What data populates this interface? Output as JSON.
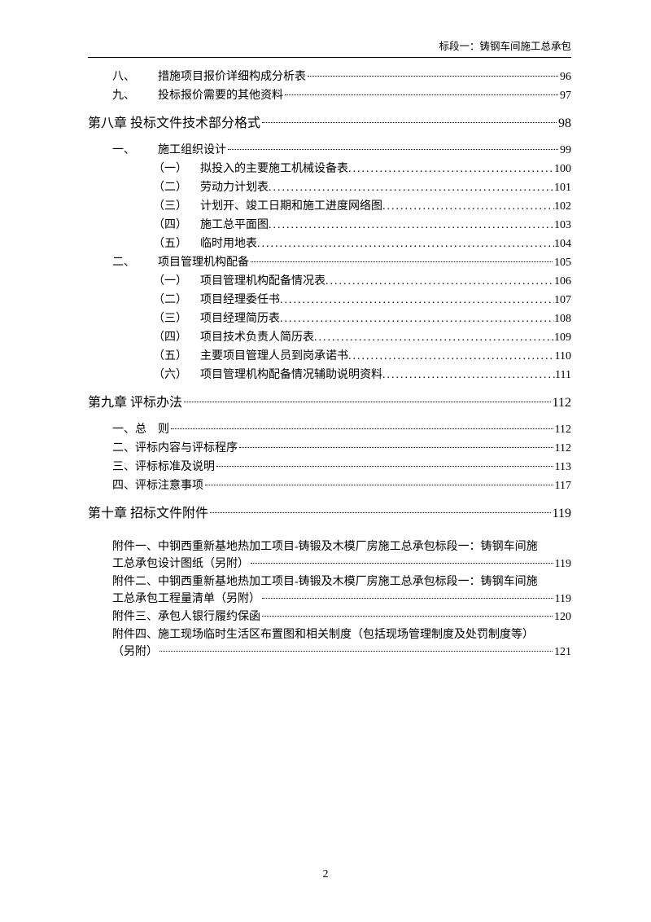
{
  "header": "标段一：铸钢车间施工总承包",
  "page_number": "2",
  "entries": [
    {
      "cls": "lvl-1",
      "num": "八、",
      "label": "措施项目报价详细构成分析表",
      "page": "96",
      "dots": "tight"
    },
    {
      "cls": "lvl-1",
      "num": "九、",
      "label": "投标报价需要的其他资料",
      "page": "97",
      "dots": "tight"
    },
    {
      "cls": "lvl-0",
      "num": "第八章",
      "label": "投标文件技术部分格式",
      "page": "98",
      "dots": "tight"
    },
    {
      "cls": "lvl-1",
      "num": "一、",
      "label": "施工组织设计",
      "page": "99",
      "dots": "tight"
    },
    {
      "cls": "lvl-2",
      "num": "（一）",
      "label": "拟投入的主要施工机械设备表",
      "page": "100",
      "dots": "wide"
    },
    {
      "cls": "lvl-2",
      "num": "（二）",
      "label": "劳动力计划表",
      "page": "101",
      "dots": "wide"
    },
    {
      "cls": "lvl-2",
      "num": "（三）",
      "label": "计划开、竣工日期和施工进度网络图",
      "page": "102",
      "dots": "wide"
    },
    {
      "cls": "lvl-2",
      "num": "（四）",
      "label": "施工总平面图",
      "page": "103",
      "dots": "wide"
    },
    {
      "cls": "lvl-2",
      "num": "（五）",
      "label": "临时用地表",
      "page": "104",
      "dots": "wide"
    },
    {
      "cls": "lvl-1",
      "num": "二、",
      "label": "项目管理机构配备",
      "page": "105",
      "dots": "tight"
    },
    {
      "cls": "lvl-2",
      "num": "（一）",
      "label": "项目管理机构配备情况表",
      "page": "106",
      "dots": "wide"
    },
    {
      "cls": "lvl-2",
      "num": "（二）",
      "label": "项目经理委任书",
      "page": "107",
      "dots": "wide"
    },
    {
      "cls": "lvl-2",
      "num": "（三）",
      "label": "项目经理简历表",
      "page": "108",
      "dots": "wide"
    },
    {
      "cls": "lvl-2",
      "num": "（四）",
      "label": "项目技术负责人简历表",
      "page": "109",
      "dots": "wide"
    },
    {
      "cls": "lvl-2",
      "num": "（五）",
      "label": "主要项目管理人员到岗承诺书",
      "page": "110",
      "dots": "wide"
    },
    {
      "cls": "lvl-2",
      "num": "（六）",
      "label": "项目管理机构配备情况辅助说明资料",
      "page": "111",
      "dots": "wide"
    },
    {
      "cls": "lvl-0",
      "num": "第九章",
      "label": "  评标办法",
      "page": "112",
      "dots": "tight"
    },
    {
      "cls": "lvl-1b",
      "num": "",
      "label": "一、总　则",
      "page": "112",
      "dots": "tight"
    },
    {
      "cls": "lvl-1b",
      "num": "",
      "label": "二、评标内容与评标程序",
      "page": "112",
      "dots": "tight"
    },
    {
      "cls": "lvl-1b",
      "num": "",
      "label": "三、评标标准及说明",
      "page": "113",
      "dots": "tight"
    },
    {
      "cls": "lvl-1b",
      "num": "",
      "label": "四、评标注意事项",
      "page": "117",
      "dots": "tight"
    },
    {
      "cls": "lvl-0",
      "num": "第十章",
      "label": "  招标文件附件",
      "page": "119",
      "dots": "tight"
    }
  ],
  "attachments": [
    {
      "line1": "附件一、中钢西重新基地热加工项目-铸锻及木模厂房施工总承包标段一：铸钢车间施",
      "line2_label": "工总承包设计图纸（另附）",
      "page": "119"
    },
    {
      "line1": "附件二、中钢西重新基地热加工项目-铸锻及木模厂房施工总承包标段一：铸钢车间施",
      "line2_label": "工总承包工程量清单（另附）",
      "page": "119"
    },
    {
      "single": true,
      "label": "附件三、承包人银行履约保函",
      "page": "120"
    },
    {
      "line1": "附件四、施工现场临时生活区布置图和相关制度（包括现场管理制度及处罚制度等）",
      "line2_label": "（另附）",
      "page": "121"
    }
  ]
}
